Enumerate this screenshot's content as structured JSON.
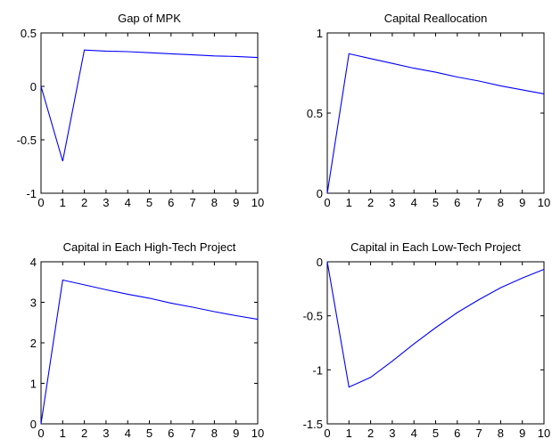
{
  "figure": {
    "background": "#ffffff",
    "line_color": "#0000ff",
    "axes_color": "#000000"
  },
  "chart_data": [
    {
      "type": "line",
      "title": "Gap of MPK",
      "xlabel": "",
      "ylabel": "",
      "xlim": [
        0,
        10
      ],
      "ylim": [
        -1,
        0.5
      ],
      "xticks": [
        "0",
        "1",
        "2",
        "3",
        "4",
        "5",
        "6",
        "7",
        "8",
        "9",
        "10"
      ],
      "yticks": [
        "-1",
        "-0.5",
        "0",
        "0.5"
      ],
      "series": [
        {
          "x": [
            0,
            1,
            2,
            3,
            4,
            5,
            6,
            7,
            8,
            9,
            10
          ],
          "values": [
            0,
            -0.7,
            0.34,
            0.33,
            0.325,
            0.315,
            0.305,
            0.295,
            0.285,
            0.28,
            0.27
          ]
        }
      ]
    },
    {
      "type": "line",
      "title": "Capital Reallocation",
      "xlabel": "",
      "ylabel": "",
      "xlim": [
        0,
        10
      ],
      "ylim": [
        0,
        1
      ],
      "xticks": [
        "0",
        "1",
        "2",
        "3",
        "4",
        "5",
        "6",
        "7",
        "8",
        "9",
        "10"
      ],
      "yticks": [
        "0",
        "0.5",
        "1"
      ],
      "series": [
        {
          "x": [
            0,
            1,
            2,
            3,
            4,
            5,
            6,
            7,
            8,
            9,
            10
          ],
          "values": [
            0,
            0.87,
            0.84,
            0.81,
            0.78,
            0.755,
            0.725,
            0.7,
            0.67,
            0.645,
            0.62
          ]
        }
      ]
    },
    {
      "type": "line",
      "title": "Capital in Each High-Tech Project",
      "xlabel": "",
      "ylabel": "",
      "xlim": [
        0,
        10
      ],
      "ylim": [
        0,
        4
      ],
      "xticks": [
        "0",
        "1",
        "2",
        "3",
        "4",
        "5",
        "6",
        "7",
        "8",
        "9",
        "10"
      ],
      "yticks": [
        "0",
        "1",
        "2",
        "3",
        "4"
      ],
      "series": [
        {
          "x": [
            0,
            1,
            2,
            3,
            4,
            5,
            6,
            7,
            8,
            9,
            10
          ],
          "values": [
            0,
            3.55,
            3.43,
            3.31,
            3.2,
            3.1,
            2.98,
            2.88,
            2.77,
            2.67,
            2.58
          ]
        }
      ]
    },
    {
      "type": "line",
      "title": "Capital in Each Low-Tech Project",
      "xlabel": "",
      "ylabel": "",
      "xlim": [
        0,
        10
      ],
      "ylim": [
        -1.5,
        0
      ],
      "xticks": [
        "0",
        "1",
        "2",
        "3",
        "4",
        "5",
        "6",
        "7",
        "8",
        "9",
        "10"
      ],
      "yticks": [
        "-1.5",
        "-1",
        "-0.5",
        "0"
      ],
      "series": [
        {
          "x": [
            0,
            1,
            2,
            3,
            4,
            5,
            6,
            7,
            8,
            9,
            10
          ],
          "values": [
            0,
            -1.16,
            -1.07,
            -0.92,
            -0.76,
            -0.61,
            -0.47,
            -0.35,
            -0.24,
            -0.15,
            -0.07
          ]
        }
      ]
    }
  ]
}
